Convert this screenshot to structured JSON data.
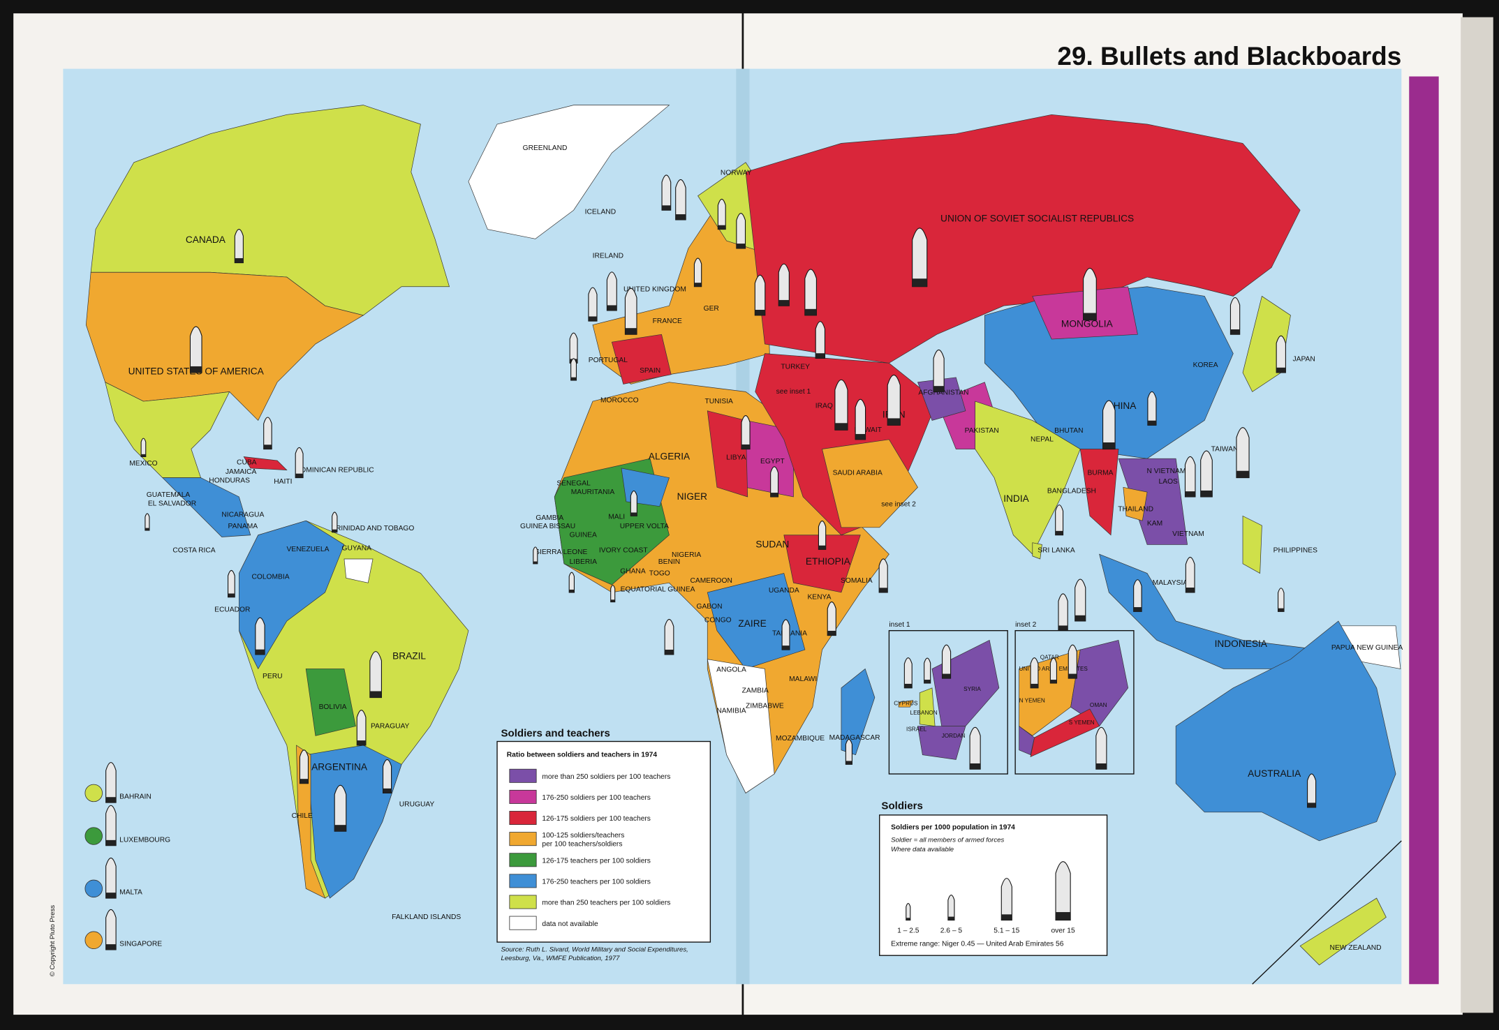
{
  "title": "29. Bullets and Blackboards",
  "copyright": "© Copyright Pluto Press",
  "map_labels": [
    "GREENLAND",
    "ICELAND",
    "NORWAY",
    "IRELAND",
    "UNITED KINGDOM",
    "FRANCE",
    "PORTUGAL",
    "SPAIN",
    "GER",
    "CANADA",
    "UNITED STATES OF AMERICA",
    "MEXICO",
    "CUBA",
    "JAMAICA",
    "HONDURAS",
    "HAITI",
    "DOMINICAN REPUBLIC",
    "GUATEMALA",
    "EL SALVADOR",
    "NICARAGUA",
    "PANAMA",
    "COSTA RICA",
    "TRINIDAD AND TOBAGO",
    "VENEZUELA",
    "GUYANA",
    "COLOMBIA",
    "ECUADOR",
    "PERU",
    "BRAZIL",
    "BOLIVIA",
    "PARAGUAY",
    "ARGENTINA",
    "CHILE",
    "URUGUAY",
    "FALKLAND ISLANDS",
    "MOROCCO",
    "TUNISIA",
    "ALGERIA",
    "LIBYA",
    "EGYPT",
    "MAURITANIA",
    "MALI",
    "NIGER",
    "SENEGAL",
    "GAMBIA",
    "GUINEA BISSAU",
    "GUINEA",
    "SIERRA LEONE",
    "LIBERIA",
    "IVORY COAST",
    "UPPER VOLTA",
    "GHANA",
    "TOGO",
    "BENIN",
    "NIGERIA",
    "CAMEROON",
    "EQUATORIAL GUINEA",
    "GABON",
    "CONGO",
    "ZAIRE",
    "SUDAN",
    "ETHIOPIA",
    "SOMALIA",
    "KENYA",
    "UGANDA",
    "TANZANIA",
    "ANGOLA",
    "ZAMBIA",
    "MALAWI",
    "NAMIBIA",
    "ZIMBABWE",
    "MOZAMBIQUE",
    "MADAGASCAR",
    "TURKEY",
    "IRAQ",
    "IRAN",
    "KUWAIT",
    "SAUDI ARABIA",
    "AFGHANISTAN",
    "PAKISTAN",
    "INDIA",
    "NEPAL",
    "BHUTAN",
    "BANGLADESH",
    "SRI LANKA",
    "BURMA",
    "THAILAND",
    "KAM",
    "VIETNAM",
    "LAOS",
    "N VIETNAM",
    "CHINA",
    "MONGOLIA",
    "KOREA",
    "JAPAN",
    "TAIWAN",
    "PHILIPPINES",
    "MALAYSIA",
    "INDONESIA",
    "PAPUA NEW GUINEA",
    "AUSTRALIA",
    "NEW ZEALAND",
    "UNION OF SOVIET SOCIALIST REPUBLICS",
    "see inset 1",
    "see inset 2"
  ],
  "small_countries": [
    {
      "name": "BAHRAIN",
      "color": "#cfe04a"
    },
    {
      "name": "LUXEMBOURG",
      "color": "#3c9a3c"
    },
    {
      "name": "MALTA",
      "color": "#3f8fd6"
    },
    {
      "name": "SINGAPORE",
      "color": "#f0a830"
    }
  ],
  "teachers_legend": {
    "title": "Soldiers and teachers",
    "subtitle": "Ratio between soldiers and teachers in 1974",
    "items": [
      {
        "lines": [
          "more than 250 soldiers per 100 teachers"
        ],
        "color": "#7b4fa8"
      },
      {
        "lines": [
          "176-250 soldiers per 100 teachers"
        ],
        "color": "#c8389a"
      },
      {
        "lines": [
          "126-175 soldiers per 100 teachers"
        ],
        "color": "#d9263a"
      },
      {
        "lines": [
          "100-125 soldiers/teachers",
          "per 100 teachers/soldiers"
        ],
        "color": "#f0a830"
      },
      {
        "lines": [
          "126-175 teachers per 100 soldiers"
        ],
        "color": "#3c9a3c"
      },
      {
        "lines": [
          "176-250 teachers per 100 soldiers"
        ],
        "color": "#3f8fd6"
      },
      {
        "lines": [
          "more than 250 teachers per 100 soldiers"
        ],
        "color": "#cfe04a"
      },
      {
        "lines": [
          "data not available"
        ],
        "color": "#ffffff"
      }
    ],
    "source": [
      "Source:  Ruth L. Sivard, World Military and Social Expenditures,",
      "Leesburg, Va., WMFE Publication, 1977"
    ]
  },
  "soldiers_legend": {
    "title": "Soldiers",
    "subtitle": "Soldiers per 1000 population in 1974",
    "notes": [
      "Soldier  =  all members of armed forces",
      "Where data available"
    ],
    "classes": [
      "1 – 2.5",
      "2.6 – 5",
      "5.1 – 15",
      "over 15"
    ],
    "extreme": "Extreme range: Niger 0.45 — United Arab Emirates 56"
  },
  "insets": [
    {
      "title": "inset 1",
      "labels": [
        "CYPRUS",
        "LEBANON",
        "SYRIA",
        "ISRAEL",
        "JORDAN"
      ]
    },
    {
      "title": "inset 2",
      "labels": [
        "QATAR",
        "UNITED ARAB EMIRATES",
        "N YEMEN",
        "OMAN",
        "S YEMEN"
      ]
    }
  ]
}
